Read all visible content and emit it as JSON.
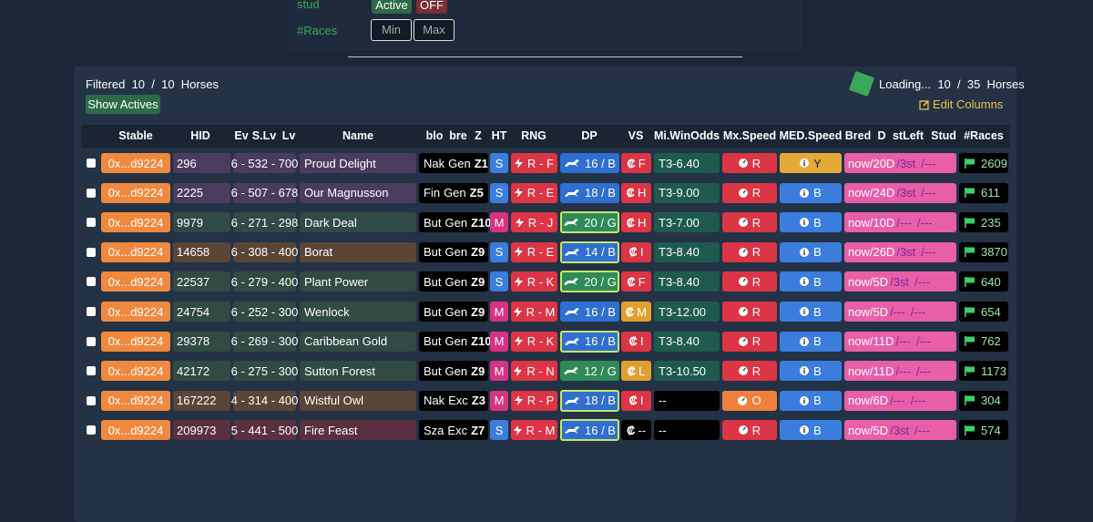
{
  "filters": {
    "stud_label": "stud",
    "active": "Active",
    "off": "OFF",
    "races_label": "#Races",
    "min": "Min",
    "max": "Max"
  },
  "summary": {
    "filtered": "Filtered  10  /  10  Horses",
    "show_actives": "Show Actives",
    "loading": "Loading...  10  /  35  Horses",
    "edit_columns": "Edit Columns"
  },
  "table": {
    "headers": [
      "Stable",
      "HID",
      "Ev",
      "S.Lv",
      "Lv",
      "Name",
      "blo",
      "bre",
      "Z",
      "HT",
      "RNG",
      "DP",
      "VS",
      "Mi.WinOdds",
      "Mx.Speed",
      "MED.Speed",
      "Bred",
      "D",
      "stLeft",
      "Stud",
      "#Races"
    ],
    "rows": [
      {
        "tint": "#4b3c5f",
        "stable": "0x...d9224",
        "hid": "296",
        "ev": "6 - 532 - 700",
        "name": "Proud Delight",
        "blo": "Nak",
        "bre": "Gen",
        "z": "Z1",
        "ht": "S",
        "ht_color": "#3b7ddd",
        "rng": "R - F",
        "dp": "16 / B",
        "dp_color": "#2f6fd0",
        "dp_outline": false,
        "vs": "F",
        "vs_color": "#dc3545",
        "odds": "T3-6.40",
        "odds_color": "#1f5a4e",
        "mx": "R",
        "mx_color": "#dc3545",
        "med": "Y",
        "med_color": "#e5a93a",
        "bred": "now",
        "days": "/20D",
        "st": "/3st",
        "stud": "/---",
        "races": "2609"
      },
      {
        "tint": "#4b3c5f",
        "stable": "0x...d9224",
        "hid": "2225",
        "ev": "6 - 507 - 678",
        "name": "Our Magnusson",
        "blo": "Fin",
        "bre": "Gen",
        "z": "Z5",
        "ht": "S",
        "ht_color": "#3b7ddd",
        "rng": "R - E",
        "dp": "18 / B",
        "dp_color": "#2f6fd0",
        "dp_outline": false,
        "vs": "H",
        "vs_color": "#dc3545",
        "odds": "T3-9.00",
        "odds_color": "#1f5a4e",
        "mx": "R",
        "mx_color": "#dc3545",
        "med": "B",
        "med_color": "#3b7ddd",
        "bred": "now",
        "days": "/24D",
        "st": "/3st",
        "stud": "/---",
        "races": "611"
      },
      {
        "tint": "#304a44",
        "stable": "0x...d9224",
        "hid": "9979",
        "ev": "6 - 271 - 298",
        "name": "Dark Deal",
        "blo": "But",
        "bre": "Gen",
        "z": "Z10",
        "ht": "M",
        "ht_color": "#d63384",
        "rng": "R - J",
        "dp": "20 / G",
        "dp_color": "#2e8b57",
        "dp_outline": true,
        "vs": "H",
        "vs_color": "#dc3545",
        "odds": "T3-7.00",
        "odds_color": "#1f5a4e",
        "mx": "R",
        "mx_color": "#dc3545",
        "med": "B",
        "med_color": "#3b7ddd",
        "bred": "now",
        "days": "/10D",
        "st": "/---",
        "stud": "/---",
        "races": "235"
      },
      {
        "tint": "#5a4536",
        "stable": "0x...d9224",
        "hid": "14658",
        "ev": "6 - 308 - 400",
        "name": "Borat",
        "blo": "But",
        "bre": "Gen",
        "z": "Z9",
        "ht": "S",
        "ht_color": "#3b7ddd",
        "rng": "R - E",
        "dp": "14 / B",
        "dp_color": "#2f6fd0",
        "dp_outline": true,
        "vs": "I",
        "vs_color": "#dc3545",
        "odds": "T3-8.40",
        "odds_color": "#1f5a4e",
        "mx": "R",
        "mx_color": "#dc3545",
        "med": "B",
        "med_color": "#3b7ddd",
        "bred": "now",
        "days": "/26D",
        "st": "/3st",
        "stud": "/---",
        "races": "3870"
      },
      {
        "tint": "#304a44",
        "stable": "0x...d9224",
        "hid": "22537",
        "ev": "6 - 279 - 400",
        "name": "Plant Power",
        "blo": "But",
        "bre": "Gen",
        "z": "Z9",
        "ht": "S",
        "ht_color": "#3b7ddd",
        "rng": "R - K",
        "dp": "20 / G",
        "dp_color": "#2e8b57",
        "dp_outline": true,
        "vs": "F",
        "vs_color": "#dc3545",
        "odds": "T3-8.40",
        "odds_color": "#1f5a4e",
        "mx": "R",
        "mx_color": "#dc3545",
        "med": "B",
        "med_color": "#3b7ddd",
        "bred": "now",
        "days": "/5D",
        "st": "/3st",
        "stud": "/---",
        "races": "640"
      },
      {
        "tint": "#304a44",
        "stable": "0x...d9224",
        "hid": "24754",
        "ev": "6 - 252 - 300",
        "name": "Wenlock",
        "blo": "But",
        "bre": "Gen",
        "z": "Z9",
        "ht": "M",
        "ht_color": "#d63384",
        "rng": "R - M",
        "dp": "16 / B",
        "dp_color": "#2f6fd0",
        "dp_outline": false,
        "vs": "M",
        "vs_color": "#e0a030",
        "odds": "T3-12.00",
        "odds_color": "#1f5a4e",
        "mx": "R",
        "mx_color": "#dc3545",
        "med": "B",
        "med_color": "#3b7ddd",
        "bred": "now",
        "days": "/5D",
        "st": "/---",
        "stud": "/---",
        "races": "654"
      },
      {
        "tint": "#304a44",
        "stable": "0x...d9224",
        "hid": "29378",
        "ev": "6 - 269 - 300",
        "name": "Caribbean Gold",
        "blo": "But",
        "bre": "Gen",
        "z": "Z10",
        "ht": "M",
        "ht_color": "#d63384",
        "rng": "R - K",
        "dp": "16 / B",
        "dp_color": "#2f6fd0",
        "dp_outline": true,
        "vs": "I",
        "vs_color": "#dc3545",
        "odds": "T3-8.40",
        "odds_color": "#1f5a4e",
        "mx": "R",
        "mx_color": "#dc3545",
        "med": "B",
        "med_color": "#3b7ddd",
        "bred": "now",
        "days": "/11D",
        "st": "/---",
        "stud": "/---",
        "races": "762"
      },
      {
        "tint": "#304a44",
        "stable": "0x...d9224",
        "hid": "42172",
        "ev": "6 - 275 - 300",
        "name": "Sutton Forest",
        "blo": "But",
        "bre": "Gen",
        "z": "Z9",
        "ht": "M",
        "ht_color": "#d63384",
        "rng": "R - N",
        "dp": "12 / G",
        "dp_color": "#2e8b57",
        "dp_outline": false,
        "vs": "L",
        "vs_color": "#e0a030",
        "odds": "T3-10.50",
        "odds_color": "#1f5a4e",
        "mx": "R",
        "mx_color": "#dc3545",
        "med": "B",
        "med_color": "#3b7ddd",
        "bred": "now",
        "days": "/11D",
        "st": "/---",
        "stud": "/---",
        "races": "1173"
      },
      {
        "tint": "#5a4536",
        "stable": "0x...d9224",
        "hid": "167222",
        "ev": "4 - 314 - 400",
        "name": "Wistful Owl",
        "blo": "Nak",
        "bre": "Exc",
        "z": "Z3",
        "ht": "M",
        "ht_color": "#d63384",
        "rng": "R - P",
        "dp": "18 / B",
        "dp_color": "#2f6fd0",
        "dp_outline": true,
        "vs": "I",
        "vs_color": "#dc3545",
        "odds": "--",
        "odds_color": "#000000",
        "mx": "O",
        "mx_color": "#f0803c",
        "med": "B",
        "med_color": "#3b7ddd",
        "bred": "now",
        "days": "/6D",
        "st": "/---",
        "stud": "/---",
        "races": "304"
      },
      {
        "tint": "#5a3040",
        "stable": "0x...d9224",
        "hid": "209973",
        "ev": "5 - 441 - 500",
        "name": "Fire Feast",
        "blo": "Sza",
        "bre": "Exc",
        "z": "Z7",
        "ht": "S",
        "ht_color": "#3b7ddd",
        "rng": "R - M",
        "dp": "16 / B",
        "dp_color": "#2f6fd0",
        "dp_outline": true,
        "vs": "--",
        "vs_color": "#000000",
        "odds": "--",
        "odds_color": "#000000",
        "mx": "R",
        "mx_color": "#dc3545",
        "med": "B",
        "med_color": "#3b7ddd",
        "bred": "now",
        "days": "/5D",
        "st": "/3st",
        "stud": "/---",
        "races": "574"
      }
    ]
  }
}
